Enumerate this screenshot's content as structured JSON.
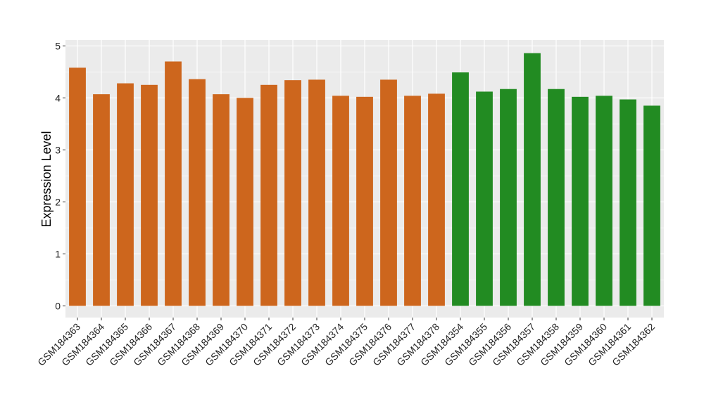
{
  "chart_data": {
    "type": "bar",
    "title": "",
    "xlabel": "",
    "ylabel": "Expression Level",
    "ylim": [
      0,
      5
    ],
    "yticks": [
      0,
      1,
      2,
      3,
      4,
      5
    ],
    "grid": true,
    "categories": [
      "GSM184363",
      "GSM184364",
      "GSM184365",
      "GSM184366",
      "GSM184367",
      "GSM184368",
      "GSM184369",
      "GSM184370",
      "GSM184371",
      "GSM184372",
      "GSM184373",
      "GSM184374",
      "GSM184375",
      "GSM184376",
      "GSM184377",
      "GSM184378",
      "GSM184354",
      "GSM184355",
      "GSM184356",
      "GSM184357",
      "GSM184358",
      "GSM184359",
      "GSM184360",
      "GSM184361",
      "GSM184362"
    ],
    "values": [
      4.58,
      4.07,
      4.28,
      4.25,
      4.7,
      4.36,
      4.07,
      4.0,
      4.25,
      4.34,
      4.35,
      4.04,
      4.02,
      4.35,
      4.04,
      4.08,
      4.49,
      4.12,
      4.17,
      4.86,
      4.17,
      4.02,
      4.04,
      3.97,
      3.85
    ],
    "groups": [
      "a",
      "a",
      "a",
      "a",
      "a",
      "a",
      "a",
      "a",
      "a",
      "a",
      "a",
      "a",
      "a",
      "a",
      "a",
      "a",
      "b",
      "b",
      "b",
      "b",
      "b",
      "b",
      "b",
      "b",
      "b"
    ],
    "colors": {
      "a": "#CD661D",
      "b": "#228B22"
    },
    "panel_background": "#EBEBEB",
    "legend": "none"
  }
}
